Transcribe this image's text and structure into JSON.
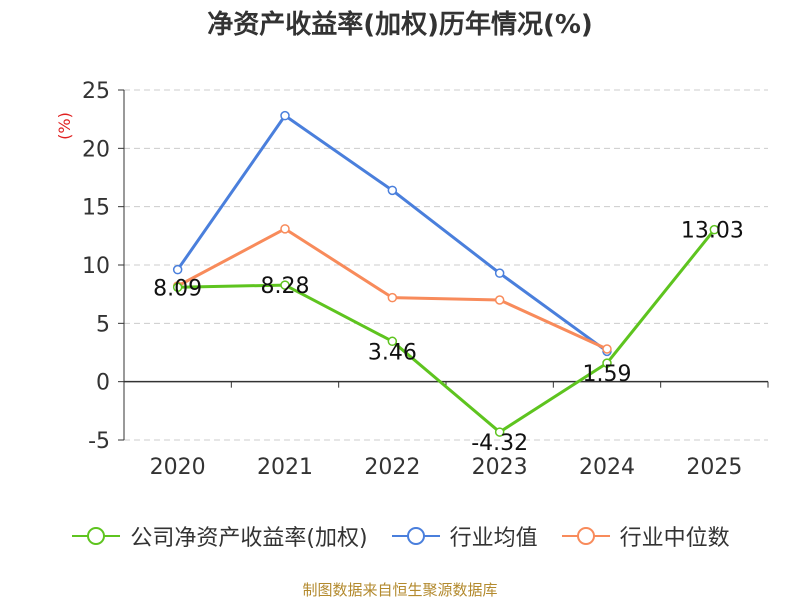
{
  "source_text": "制图数据来自恒生聚源数据库",
  "chart_data": {
    "type": "line",
    "title": "净资产收益率(加权)历年情况(%)",
    "ylabel": "(%)",
    "xlabel": "",
    "categories": [
      "2020",
      "2021",
      "2022",
      "2023",
      "2024",
      "2025"
    ],
    "ylim": [
      -5,
      25
    ],
    "yticks": [
      "25",
      "20",
      "15",
      "10",
      "5",
      "0",
      "-5"
    ],
    "ytick_values": [
      25,
      20,
      15,
      10,
      5,
      0,
      -5
    ],
    "grid": true,
    "legend_position": "bottom",
    "series": [
      {
        "name": "公司净资产收益率(加权)",
        "color": "#5ec41f",
        "values": [
          8.09,
          8.28,
          3.46,
          -4.32,
          1.59,
          13.03
        ],
        "labels": [
          "8.09",
          "8.28",
          "3.46",
          "-4.32",
          "1.59",
          "13.03"
        ]
      },
      {
        "name": "行业均值",
        "color": "#4a7fdc",
        "values": [
          9.6,
          22.8,
          16.4,
          9.3,
          2.6,
          null
        ]
      },
      {
        "name": "行业中位数",
        "color": "#f88b5b",
        "values": [
          8.2,
          13.1,
          7.2,
          7.0,
          2.8,
          null
        ]
      }
    ]
  }
}
